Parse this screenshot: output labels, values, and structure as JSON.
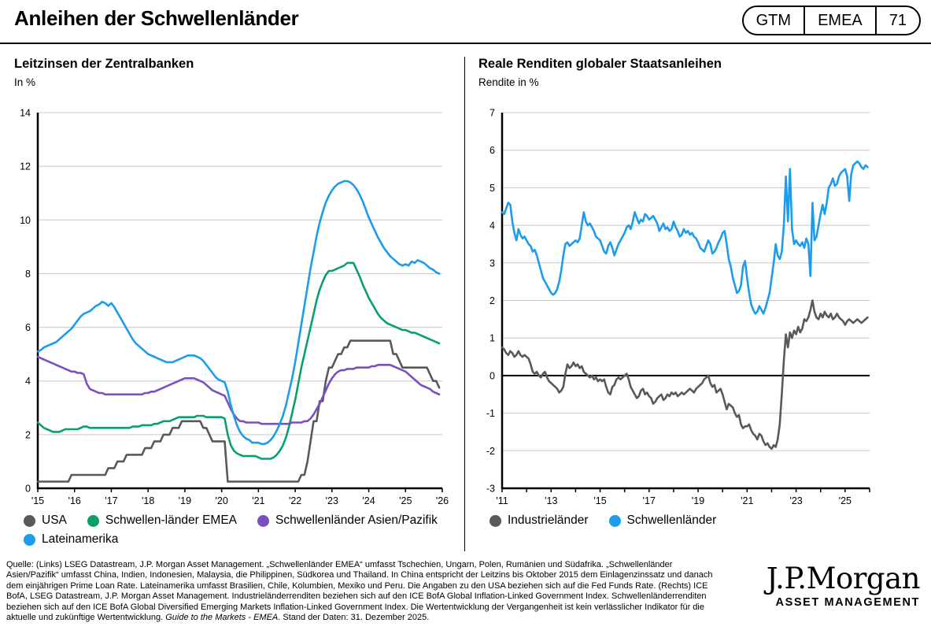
{
  "header": {
    "title": "Anleihen der Schwellenländer",
    "badge": {
      "book": "GTM",
      "region": "EMEA",
      "page": "71"
    }
  },
  "colors": {
    "gray": "#58595b",
    "green": "#0aa069",
    "purple": "#7b50be",
    "blue": "#1c9ceb",
    "gridline": "#c8c8c8",
    "axis": "#000000"
  },
  "chart_data": [
    {
      "type": "line",
      "title": "Leitzinsen der Zentralbanken",
      "subtitle": "In %",
      "ylabel": "In %",
      "ylim": [
        0,
        14
      ],
      "ytick_step": 2,
      "xlim": [
        2015,
        2026
      ],
      "x_start": 2015.0,
      "x_step": 0.0833333,
      "grid": true,
      "zero_line": false,
      "legend_position": "bottom",
      "xticks": [
        2015,
        2016,
        2017,
        2018,
        2019,
        2020,
        2021,
        2022,
        2023,
        2024,
        2025,
        2026
      ],
      "xtick_labels": [
        "'15",
        "'16",
        "'17",
        "'18",
        "'19",
        "'20",
        "'21",
        "'22",
        "'23",
        "'24",
        "'25",
        "'26"
      ],
      "series": [
        {
          "name": "USA",
          "color": "#58595b",
          "values": [
            0.25,
            0.25,
            0.25,
            0.25,
            0.25,
            0.25,
            0.25,
            0.25,
            0.25,
            0.25,
            0.25,
            0.5,
            0.5,
            0.5,
            0.5,
            0.5,
            0.5,
            0.5,
            0.5,
            0.5,
            0.5,
            0.5,
            0.5,
            0.75,
            0.75,
            0.75,
            1.0,
            1.0,
            1.0,
            1.25,
            1.25,
            1.25,
            1.25,
            1.25,
            1.25,
            1.5,
            1.5,
            1.5,
            1.75,
            1.75,
            1.75,
            2.0,
            2.0,
            2.0,
            2.25,
            2.25,
            2.25,
            2.5,
            2.5,
            2.5,
            2.5,
            2.5,
            2.5,
            2.5,
            2.25,
            2.25,
            2.0,
            1.75,
            1.75,
            1.75,
            1.75,
            1.75,
            0.25,
            0.25,
            0.25,
            0.25,
            0.25,
            0.25,
            0.25,
            0.25,
            0.25,
            0.25,
            0.25,
            0.25,
            0.25,
            0.25,
            0.25,
            0.25,
            0.25,
            0.25,
            0.25,
            0.25,
            0.25,
            0.25,
            0.25,
            0.25,
            0.5,
            0.5,
            1.0,
            1.75,
            2.5,
            2.5,
            3.25,
            3.25,
            4.0,
            4.5,
            4.5,
            4.75,
            5.0,
            5.0,
            5.25,
            5.25,
            5.5,
            5.5,
            5.5,
            5.5,
            5.5,
            5.5,
            5.5,
            5.5,
            5.5,
            5.5,
            5.5,
            5.5,
            5.5,
            5.5,
            5.0,
            5.0,
            4.75,
            4.5,
            4.5,
            4.5,
            4.5,
            4.5,
            4.5,
            4.5,
            4.5,
            4.5,
            4.25,
            4.0,
            4.0,
            3.75
          ]
        },
        {
          "name": "Schwellen-länder EMEA",
          "color": "#0aa069",
          "values": [
            2.45,
            2.35,
            2.25,
            2.2,
            2.15,
            2.1,
            2.1,
            2.1,
            2.15,
            2.2,
            2.2,
            2.2,
            2.2,
            2.2,
            2.25,
            2.3,
            2.3,
            2.25,
            2.25,
            2.25,
            2.25,
            2.25,
            2.25,
            2.25,
            2.25,
            2.25,
            2.25,
            2.25,
            2.25,
            2.25,
            2.25,
            2.3,
            2.3,
            2.3,
            2.35,
            2.35,
            2.35,
            2.35,
            2.4,
            2.4,
            2.45,
            2.5,
            2.5,
            2.5,
            2.55,
            2.6,
            2.65,
            2.65,
            2.65,
            2.65,
            2.65,
            2.65,
            2.7,
            2.7,
            2.7,
            2.65,
            2.65,
            2.65,
            2.65,
            2.65,
            2.65,
            2.6,
            2.0,
            1.6,
            1.4,
            1.3,
            1.25,
            1.2,
            1.2,
            1.2,
            1.2,
            1.2,
            1.15,
            1.1,
            1.1,
            1.1,
            1.1,
            1.15,
            1.25,
            1.4,
            1.6,
            1.9,
            2.3,
            2.8,
            3.3,
            3.9,
            4.5,
            5.0,
            5.5,
            6.0,
            6.5,
            7.0,
            7.4,
            7.7,
            7.95,
            8.1,
            8.1,
            8.15,
            8.2,
            8.25,
            8.3,
            8.4,
            8.4,
            8.4,
            8.15,
            7.9,
            7.6,
            7.35,
            7.1,
            6.9,
            6.7,
            6.5,
            6.35,
            6.25,
            6.15,
            6.1,
            6.05,
            6.0,
            5.95,
            5.9,
            5.9,
            5.85,
            5.8,
            5.8,
            5.75,
            5.7,
            5.65,
            5.6,
            5.55,
            5.5,
            5.45,
            5.4
          ]
        },
        {
          "name": "Schwellenländer Asien/Pazifik",
          "color": "#7b50be",
          "values": [
            4.9,
            4.85,
            4.8,
            4.75,
            4.7,
            4.65,
            4.6,
            4.55,
            4.5,
            4.45,
            4.4,
            4.35,
            4.35,
            4.3,
            4.3,
            4.25,
            3.9,
            3.7,
            3.65,
            3.6,
            3.55,
            3.55,
            3.5,
            3.5,
            3.5,
            3.5,
            3.5,
            3.5,
            3.5,
            3.5,
            3.5,
            3.5,
            3.5,
            3.5,
            3.5,
            3.55,
            3.55,
            3.6,
            3.6,
            3.65,
            3.7,
            3.75,
            3.8,
            3.85,
            3.9,
            3.95,
            4.0,
            4.05,
            4.1,
            4.1,
            4.1,
            4.1,
            4.05,
            4.0,
            3.95,
            3.85,
            3.75,
            3.65,
            3.6,
            3.55,
            3.5,
            3.45,
            3.2,
            2.95,
            2.75,
            2.6,
            2.5,
            2.5,
            2.45,
            2.45,
            2.45,
            2.45,
            2.45,
            2.4,
            2.4,
            2.4,
            2.4,
            2.4,
            2.4,
            2.4,
            2.4,
            2.4,
            2.4,
            2.45,
            2.45,
            2.45,
            2.45,
            2.5,
            2.5,
            2.6,
            2.75,
            2.95,
            3.15,
            3.4,
            3.65,
            3.9,
            4.1,
            4.25,
            4.35,
            4.4,
            4.4,
            4.45,
            4.45,
            4.45,
            4.5,
            4.5,
            4.5,
            4.5,
            4.5,
            4.55,
            4.55,
            4.6,
            4.6,
            4.6,
            4.6,
            4.6,
            4.55,
            4.5,
            4.45,
            4.4,
            4.35,
            4.25,
            4.15,
            4.05,
            3.95,
            3.85,
            3.8,
            3.75,
            3.7,
            3.6,
            3.55,
            3.5
          ]
        },
        {
          "name": "Lateinamerika",
          "color": "#1c9ceb",
          "values": [
            5.1,
            5.15,
            5.25,
            5.3,
            5.35,
            5.4,
            5.45,
            5.55,
            5.65,
            5.75,
            5.85,
            5.95,
            6.1,
            6.25,
            6.4,
            6.5,
            6.55,
            6.6,
            6.7,
            6.8,
            6.85,
            6.95,
            6.9,
            6.8,
            6.9,
            6.75,
            6.55,
            6.35,
            6.15,
            5.95,
            5.75,
            5.55,
            5.4,
            5.3,
            5.2,
            5.1,
            5.0,
            4.95,
            4.9,
            4.85,
            4.8,
            4.75,
            4.7,
            4.7,
            4.7,
            4.75,
            4.8,
            4.85,
            4.9,
            4.95,
            4.95,
            4.95,
            4.9,
            4.85,
            4.75,
            4.6,
            4.45,
            4.3,
            4.15,
            4.05,
            4.0,
            3.95,
            3.6,
            3.1,
            2.7,
            2.35,
            2.1,
            1.95,
            1.85,
            1.8,
            1.7,
            1.7,
            1.7,
            1.65,
            1.65,
            1.7,
            1.8,
            1.95,
            2.15,
            2.4,
            2.7,
            3.1,
            3.6,
            4.1,
            4.7,
            5.4,
            6.1,
            6.8,
            7.5,
            8.2,
            8.8,
            9.4,
            9.9,
            10.3,
            10.65,
            10.9,
            11.1,
            11.25,
            11.35,
            11.4,
            11.45,
            11.45,
            11.4,
            11.3,
            11.15,
            10.95,
            10.7,
            10.4,
            10.1,
            9.85,
            9.6,
            9.35,
            9.15,
            8.95,
            8.8,
            8.65,
            8.55,
            8.45,
            8.35,
            8.3,
            8.35,
            8.3,
            8.45,
            8.4,
            8.5,
            8.45,
            8.4,
            8.3,
            8.2,
            8.15,
            8.05,
            8.0
          ]
        }
      ]
    },
    {
      "type": "line",
      "title": "Reale Renditen globaler Staatsanleihen",
      "subtitle": "Rendite in %",
      "ylabel": "Rendite in %",
      "ylim": [
        -3,
        7
      ],
      "ytick_step": 1,
      "xlim": [
        2011,
        2026
      ],
      "x_start": 2011.0,
      "x_step": 0.0833333,
      "grid": true,
      "zero_line": true,
      "legend_position": "bottom",
      "xticks": [
        2011,
        2012,
        2013,
        2014,
        2015,
        2016,
        2017,
        2018,
        2019,
        2020,
        2021,
        2022,
        2023,
        2024,
        2025,
        2026
      ],
      "xtick_labels": [
        "'11",
        "",
        "'13",
        "",
        "'15",
        "",
        "'17",
        "",
        "'19",
        "",
        "'21",
        "",
        "'23",
        "",
        "'25",
        ""
      ],
      "series": [
        {
          "name": "Industrieländer",
          "color": "#58595b",
          "values": [
            0.75,
            0.7,
            0.6,
            0.55,
            0.65,
            0.6,
            0.5,
            0.55,
            0.65,
            0.55,
            0.5,
            0.55,
            0.5,
            0.45,
            0.3,
            0.1,
            0.05,
            0.1,
            0.0,
            -0.05,
            0.05,
            0.1,
            -0.05,
            -0.15,
            -0.2,
            -0.25,
            -0.3,
            -0.35,
            -0.45,
            -0.4,
            -0.3,
            0.05,
            0.3,
            0.2,
            0.25,
            0.35,
            0.25,
            0.3,
            0.2,
            0.25,
            0.1,
            0.05,
            0.0,
            -0.05,
            0.0,
            -0.1,
            -0.05,
            -0.15,
            -0.1,
            -0.15,
            -0.1,
            -0.3,
            -0.45,
            -0.5,
            -0.3,
            -0.25,
            -0.1,
            -0.05,
            -0.1,
            -0.05,
            0.0,
            0.05,
            -0.1,
            -0.3,
            -0.4,
            -0.5,
            -0.6,
            -0.55,
            -0.4,
            -0.35,
            -0.5,
            -0.45,
            -0.55,
            -0.6,
            -0.75,
            -0.7,
            -0.6,
            -0.55,
            -0.5,
            -0.65,
            -0.6,
            -0.5,
            -0.55,
            -0.45,
            -0.5,
            -0.45,
            -0.55,
            -0.5,
            -0.45,
            -0.5,
            -0.45,
            -0.4,
            -0.35,
            -0.4,
            -0.45,
            -0.35,
            -0.3,
            -0.25,
            -0.2,
            -0.1,
            -0.05,
            0.0,
            -0.2,
            -0.3,
            -0.25,
            -0.45,
            -0.4,
            -0.35,
            -0.5,
            -0.7,
            -0.9,
            -0.75,
            -0.8,
            -0.85,
            -1.0,
            -1.1,
            -1.05,
            -1.3,
            -1.4,
            -1.35,
            -1.35,
            -1.3,
            -1.45,
            -1.55,
            -1.6,
            -1.7,
            -1.55,
            -1.6,
            -1.75,
            -1.85,
            -1.8,
            -1.9,
            -1.95,
            -1.85,
            -1.9,
            -1.7,
            -1.3,
            -0.5,
            0.4,
            1.1,
            0.75,
            1.15,
            1.0,
            1.2,
            1.1,
            1.3,
            1.15,
            1.25,
            1.5,
            1.45,
            1.55,
            1.75,
            2.0,
            1.7,
            1.55,
            1.5,
            1.65,
            1.55,
            1.7,
            1.6,
            1.55,
            1.65,
            1.5,
            1.55,
            1.65,
            1.55,
            1.5,
            1.45,
            1.35,
            1.45,
            1.5,
            1.45,
            1.4,
            1.45,
            1.5,
            1.45,
            1.4,
            1.45,
            1.5,
            1.55
          ]
        },
        {
          "name": "Schwellenländer",
          "color": "#1c9ceb",
          "values": [
            4.35,
            4.3,
            4.45,
            4.6,
            4.55,
            4.1,
            3.8,
            3.6,
            3.9,
            3.75,
            3.65,
            3.7,
            3.6,
            3.5,
            3.45,
            3.3,
            3.35,
            3.2,
            3.0,
            2.8,
            2.6,
            2.5,
            2.4,
            2.3,
            2.2,
            2.15,
            2.2,
            2.3,
            2.5,
            2.8,
            3.2,
            3.5,
            3.55,
            3.45,
            3.5,
            3.55,
            3.6,
            3.55,
            3.65,
            4.0,
            4.35,
            4.1,
            4.0,
            4.05,
            3.95,
            3.85,
            3.7,
            3.65,
            3.6,
            3.45,
            3.3,
            3.25,
            3.45,
            3.55,
            3.4,
            3.2,
            3.35,
            3.5,
            3.6,
            3.7,
            3.8,
            3.95,
            4.0,
            3.9,
            4.1,
            4.35,
            4.2,
            4.05,
            4.15,
            4.1,
            4.3,
            4.25,
            4.15,
            4.2,
            4.25,
            4.15,
            4.05,
            3.85,
            3.95,
            4.05,
            3.9,
            3.95,
            3.85,
            3.9,
            4.1,
            3.95,
            3.85,
            3.7,
            3.75,
            3.9,
            3.8,
            3.85,
            3.75,
            3.8,
            3.7,
            3.65,
            3.55,
            3.4,
            3.35,
            3.3,
            3.45,
            3.6,
            3.5,
            3.25,
            3.3,
            3.4,
            3.55,
            3.65,
            3.8,
            3.85,
            3.5,
            3.1,
            2.9,
            2.6,
            2.4,
            2.2,
            2.25,
            2.4,
            2.9,
            3.05,
            2.6,
            2.2,
            1.9,
            1.75,
            1.65,
            1.7,
            1.85,
            1.75,
            1.65,
            1.8,
            2.0,
            2.2,
            2.6,
            3.0,
            3.5,
            3.2,
            3.1,
            3.3,
            4.0,
            5.3,
            4.1,
            5.5,
            3.9,
            3.5,
            3.6,
            3.5,
            3.45,
            3.55,
            3.4,
            3.65,
            3.5,
            2.65,
            4.6,
            3.6,
            3.7,
            4.0,
            4.3,
            4.55,
            4.3,
            4.6,
            5.0,
            5.1,
            5.25,
            5.05,
            5.1,
            5.3,
            5.4,
            5.45,
            5.5,
            5.3,
            4.65,
            5.35,
            5.6,
            5.65,
            5.7,
            5.65,
            5.55,
            5.5,
            5.6,
            5.55
          ]
        }
      ]
    }
  ],
  "footer": {
    "lines": [
      "Quelle: (Links) LSEG Datastream, J.P. Morgan Asset Management. „Schwellenländer EMEA“ umfasst Tschechien, Ungarn, Polen, Rumänien und Südafrika. „Schwellenländer",
      "Asien/Pazifik“ umfasst China, Indien, Indonesien, Malaysia, die Philippinen, Südkorea und Thailand. In China entspricht der Leitzins bis Oktober 2015 dem Einlagenzinssatz und danach",
      "dem einjährigen Prime Loan Rate. Lateinamerika umfasst Brasilien, Chile, Kolumbien, Mexiko und Peru. Die Angaben zu den USA beziehen sich auf die Fed Funds Rate. (Rechts) ICE",
      "BofA, LSEG Datastream, J.P. Morgan Asset Management. Industrieländerrenditen beziehen sich auf den ICE BofA Global Inflation-Linked Government Index. Schwellenländerrenditen",
      "beziehen sich auf den ICE BofA Global Diversified Emerging Markets Inflation-Linked Government Index. Die Wertentwicklung der Vergangenheit ist kein verlässlicher Indikator für die"
    ],
    "last_line_pre": "aktuelle und zukünftige Wertentwicklung. ",
    "last_line_italic": "Guide to the Markets - EMEA",
    "last_line_post": ". Stand der Daten: 31. Dezember 2025."
  },
  "logo": {
    "name": "J.P.Morgan",
    "subtitle": "ASSET MANAGEMENT"
  }
}
